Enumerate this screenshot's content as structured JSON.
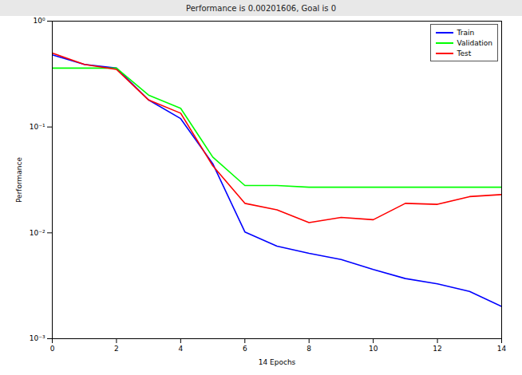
{
  "chart_data": {
    "type": "line",
    "title": "Performance is 0.00201606, Goal is 0",
    "x_label": "14 Epochs",
    "y_label": "Performance",
    "x": [
      0,
      1,
      2,
      3,
      4,
      5,
      6,
      7,
      8,
      9,
      10,
      11,
      12,
      13,
      14
    ],
    "series": [
      {
        "name": "Train",
        "color": "#0000ff",
        "values": [
          0.48,
          0.39,
          0.36,
          0.18,
          0.12,
          0.045,
          0.0102,
          0.0075,
          0.0064,
          0.0056,
          0.0045,
          0.0037,
          0.0033,
          0.0028,
          0.00201606
        ]
      },
      {
        "name": "Validation",
        "color": "#00ff00",
        "values": [
          0.36,
          0.36,
          0.36,
          0.2,
          0.15,
          0.052,
          0.028,
          0.028,
          0.027,
          0.027,
          0.027,
          0.027,
          0.027,
          0.027,
          0.027
        ]
      },
      {
        "name": "Test",
        "color": "#ff0000",
        "values": [
          0.5,
          0.39,
          0.35,
          0.18,
          0.135,
          0.043,
          0.019,
          0.0165,
          0.0125,
          0.014,
          0.0133,
          0.019,
          0.0186,
          0.022,
          0.023
        ]
      }
    ],
    "xlim": [
      0,
      14
    ],
    "xticks": [
      0,
      2,
      4,
      6,
      8,
      10,
      12,
      14
    ],
    "ylim": [
      0.001,
      1
    ],
    "yticks": [
      {
        "value": 0.001,
        "label": "10⁻³"
      },
      {
        "value": 0.01,
        "label": "10⁻²"
      },
      {
        "value": 0.1,
        "label": "10⁻¹"
      },
      {
        "value": 1,
        "label": "10⁰"
      }
    ],
    "log": "y",
    "grid": false,
    "legend": "top-right"
  }
}
